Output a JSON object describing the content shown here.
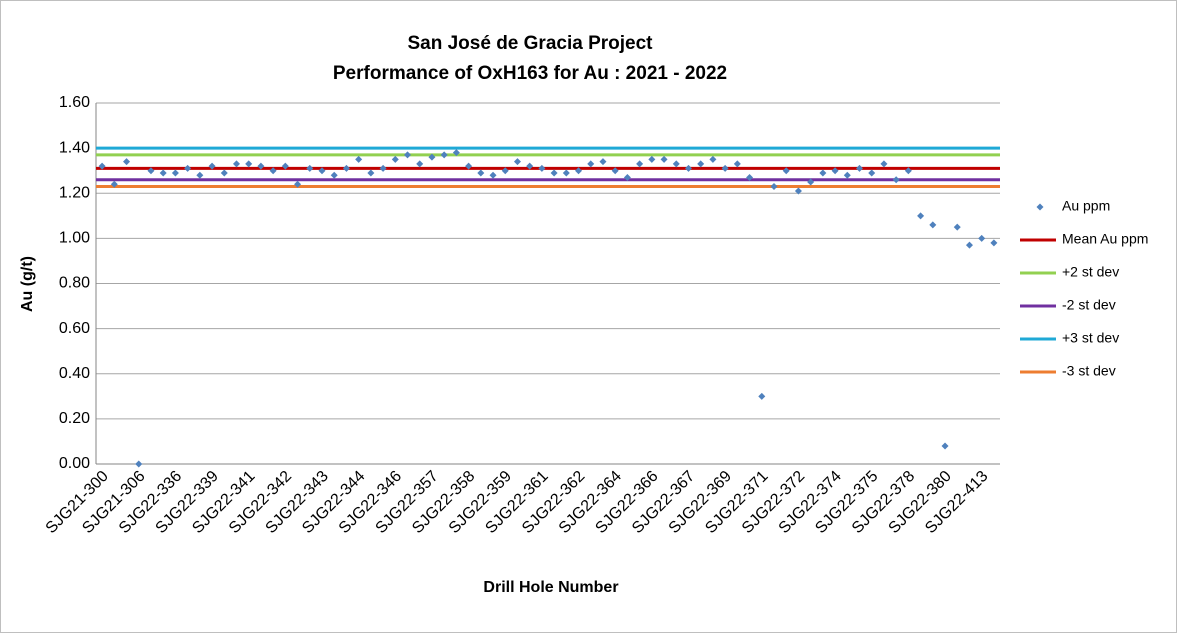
{
  "chart_data": {
    "type": "scatter",
    "title": [
      "San José de Gracia Project",
      "Performance of OxH163 for Au : 2021 - 2022"
    ],
    "x_label": "Drill Hole Number",
    "y_label": "Au (g/t)",
    "categories": [
      "SJG21-300",
      null,
      null,
      "SJG21-306",
      null,
      null,
      "SJG22-336",
      null,
      null,
      "SJG22-339",
      null,
      null,
      "SJG22-341",
      null,
      null,
      "SJG22-342",
      null,
      null,
      "SJG22-343",
      null,
      null,
      "SJG22-344",
      null,
      null,
      "SJG22-346",
      null,
      null,
      "SJG22-357",
      null,
      null,
      "SJG22-358",
      null,
      null,
      "SJG22-359",
      null,
      null,
      "SJG22-361",
      null,
      null,
      "SJG22-362",
      null,
      null,
      "SJG22-364",
      null,
      null,
      "SJG22-366",
      null,
      null,
      "SJG22-367",
      null,
      null,
      "SJG22-369",
      null,
      null,
      "SJG22-371",
      null,
      null,
      "SJG22-372",
      null,
      null,
      "SJG22-374",
      null,
      null,
      "SJG22-375",
      null,
      null,
      "SJG22-378",
      null,
      null,
      "SJG22-380",
      null,
      null,
      "SJG22-413",
      null
    ],
    "series": [
      {
        "name": "Au ppm",
        "color": "#4f81bd",
        "values": [
          1.32,
          1.24,
          1.34,
          0.0,
          1.3,
          1.29,
          1.29,
          1.31,
          1.28,
          1.32,
          1.29,
          1.33,
          1.33,
          1.32,
          1.3,
          1.32,
          1.24,
          1.31,
          1.3,
          1.28,
          1.31,
          1.35,
          1.29,
          1.31,
          1.35,
          1.37,
          1.33,
          1.36,
          1.37,
          1.38,
          1.32,
          1.29,
          1.28,
          1.3,
          1.34,
          1.32,
          1.31,
          1.29,
          1.29,
          1.3,
          1.33,
          1.34,
          1.3,
          1.27,
          1.33,
          1.35,
          1.35,
          1.33,
          1.31,
          1.33,
          1.35,
          1.31,
          1.33,
          1.27,
          0.3,
          1.23,
          1.3,
          1.21,
          1.25,
          1.29,
          1.3,
          1.28,
          1.31,
          1.29,
          1.33,
          1.26,
          1.3,
          1.1,
          1.06,
          0.08,
          1.05,
          0.97,
          1.0,
          0.98
        ]
      }
    ],
    "reference_lines": [
      {
        "name": "Mean Au ppm",
        "color": "#c00000",
        "value": 1.31
      },
      {
        "name": "+2 st dev",
        "color": "#92d050",
        "value": 1.37
      },
      {
        "name": "-2 st dev",
        "color": "#7030a0",
        "value": 1.26
      },
      {
        "name": "+3 st dev",
        "color": "#1fa9d6",
        "value": 1.4
      },
      {
        "name": "-3 st dev",
        "color": "#ed7d31",
        "value": 1.23
      }
    ],
    "ylim": [
      0,
      1.6
    ],
    "yticks": [
      {
        "value": 0,
        "label": "0.00"
      },
      {
        "value": 0.2,
        "label": "0.20"
      },
      {
        "value": 0.4,
        "label": "0.40"
      },
      {
        "value": 0.6,
        "label": "0.60"
      },
      {
        "value": 0.8,
        "label": "0.80"
      },
      {
        "value": 1,
        "label": "1.00"
      },
      {
        "value": 1.2,
        "label": "1.20"
      },
      {
        "value": 1.4,
        "label": "1.40"
      },
      {
        "value": 1.6,
        "label": "1.60"
      }
    ],
    "grid": true
  }
}
